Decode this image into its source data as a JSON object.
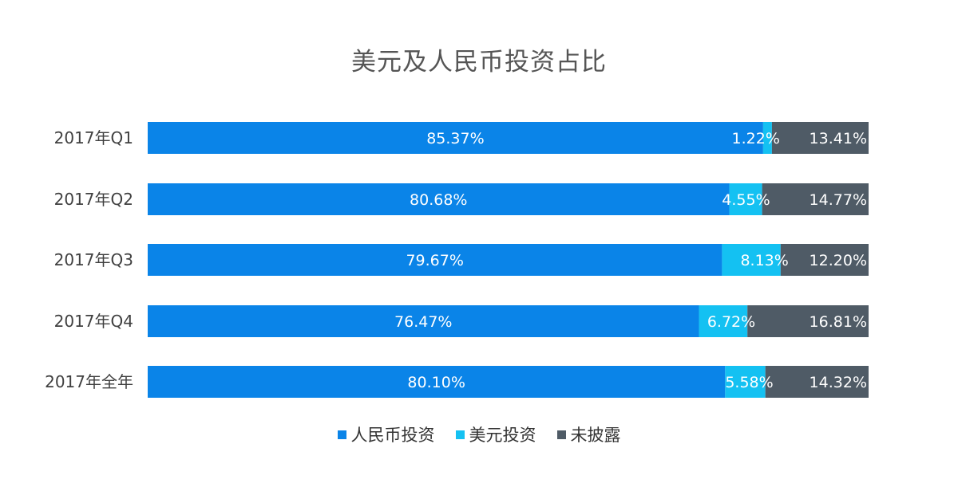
{
  "chart_data": {
    "type": "bar",
    "orientation": "horizontal",
    "stacked": true,
    "title": "美元及人民币投资占比",
    "categories": [
      "2017年Q1",
      "2017年Q2",
      "2017年Q3",
      "2017年Q4",
      "2017年全年"
    ],
    "series": [
      {
        "name": "人民币投资",
        "color": "#0a84e8",
        "values": [
          85.37,
          80.68,
          79.67,
          76.47,
          80.1
        ],
        "labels": [
          "85.37%",
          "80.68%",
          "79.67%",
          "76.47%",
          "80.10%"
        ]
      },
      {
        "name": "美元投资",
        "color": "#14c1f2",
        "values": [
          1.22,
          4.55,
          8.13,
          6.72,
          5.58
        ],
        "labels": [
          "1.22%",
          "4.55%",
          "8.13%",
          "6.72%",
          "5.58%"
        ]
      },
      {
        "name": "未披露",
        "color": "#4f5b66",
        "values": [
          13.41,
          14.77,
          12.2,
          16.81,
          14.32
        ],
        "labels": [
          "13.41%",
          "14.77%",
          "12.20%",
          "16.81%",
          "14.32%"
        ]
      }
    ],
    "xlim": [
      0,
      100
    ],
    "grid": false,
    "legend_position": "bottom"
  }
}
